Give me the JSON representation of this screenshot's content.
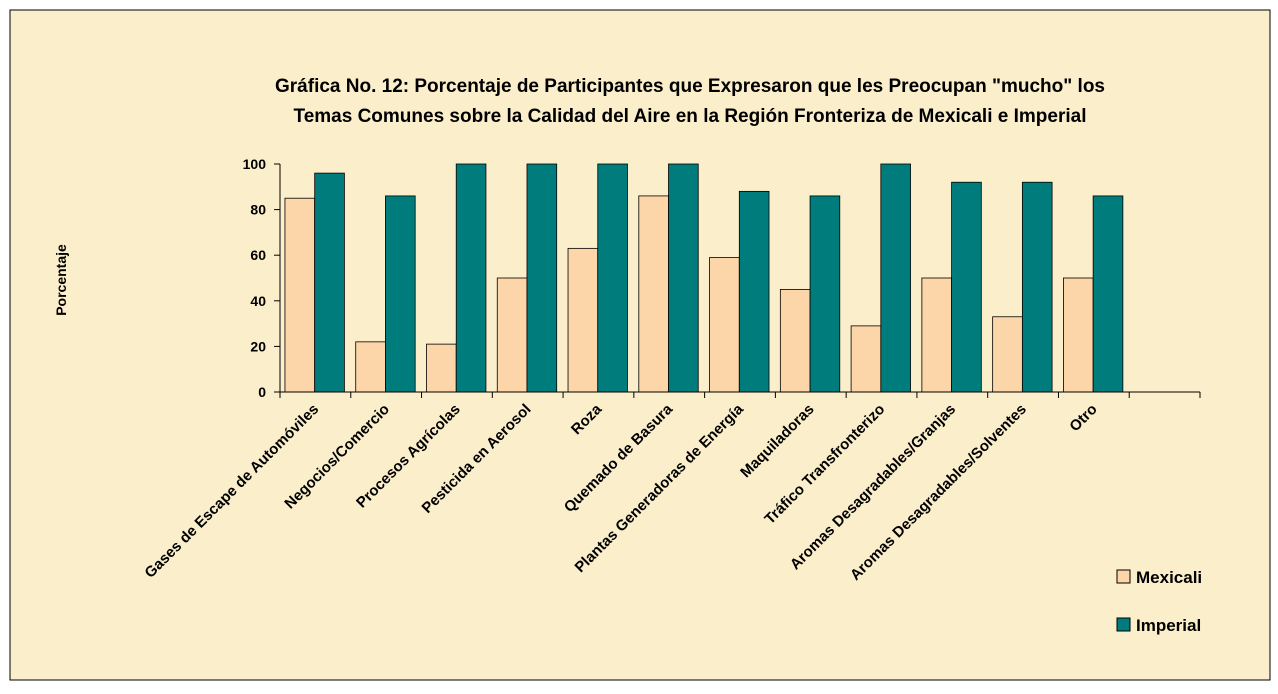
{
  "chart_data": {
    "type": "bar",
    "title": [
      "Gráfica No. 12:  Porcentaje de Participantes que Expresaron que les Preocupan \"mucho\" los",
      "Temas Comunes sobre la Calidad del Aire en la Región Fronteriza de Mexicali e Imperial"
    ],
    "y_label": "Porcentaje",
    "categories": [
      "Gases de Escape de Automóviles",
      "Negocios/Comercio",
      "Procesos Agrícolas",
      "Pesticida en Aerosol",
      "Roza",
      "Quemado de Basura",
      "Plantas Generadoras de Energía",
      "Maquiladoras",
      "Tráfico Transfronterizo",
      "Aromas Desagradables/Granjas",
      "Aromas Desagradables/Solventes",
      "Otro",
      null
    ],
    "series": [
      {
        "name": "Mexicali",
        "color": "#fcd5a8",
        "values": [
          85,
          22,
          21,
          50,
          63,
          86,
          59,
          45,
          29,
          50,
          33,
          50,
          null
        ]
      },
      {
        "name": "Imperial",
        "color": "#007c7c",
        "values": [
          96,
          86,
          100,
          100,
          100,
          100,
          88,
          86,
          100,
          92,
          92,
          86,
          null
        ]
      }
    ],
    "ylim": [
      0,
      100
    ],
    "yticks": [
      0,
      20,
      40,
      60,
      80,
      100
    ],
    "grid": false,
    "legend": "bottom-right"
  }
}
